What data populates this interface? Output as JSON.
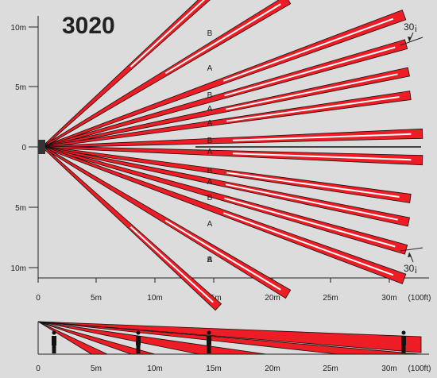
{
  "title": "3020",
  "y_axis": {
    "labels": [
      "10m",
      "5m",
      "0",
      "5m",
      "10m"
    ]
  },
  "x_axis": {
    "labels": [
      "0",
      "5m",
      "10m",
      "15m",
      "20m",
      "25m",
      "30m",
      "(100ft)"
    ]
  },
  "side_x_axis": {
    "labels": [
      "0",
      "5m",
      "10m",
      "15m",
      "20m",
      "25m",
      "30m",
      "(100ft)"
    ]
  },
  "angle_annotation": {
    "top": "30¡",
    "bottom": "30¡"
  },
  "zone_labels": [
    "B",
    "A",
    "B",
    "A",
    "A",
    "B",
    "A",
    "B",
    "A",
    "B",
    "A",
    "B",
    "A"
  ],
  "colors": {
    "zone_fill": "#ee1c24",
    "zone_stroke": "#111111",
    "background": "#dcdcdc",
    "sensor": "#333333"
  },
  "icons": {
    "sensor": "sensor-icon",
    "person": "person-icon"
  }
}
